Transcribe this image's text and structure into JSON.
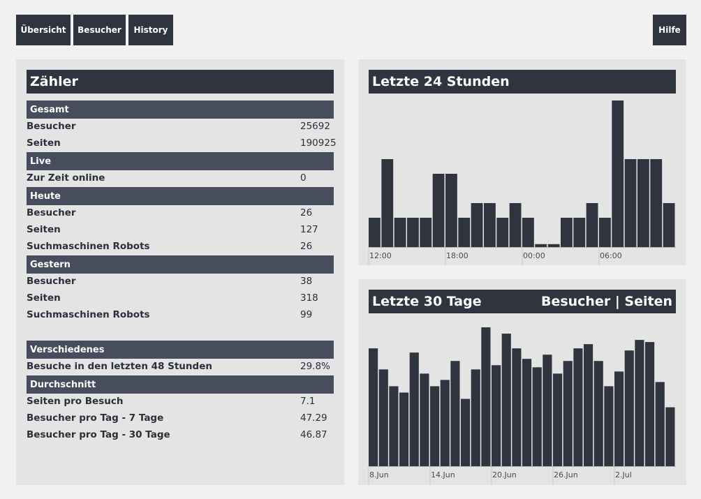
{
  "nav": {
    "overview": "Übersicht",
    "visitors": "Besucher",
    "history": "History",
    "help": "Hilfe"
  },
  "counter": {
    "title": "Zähler",
    "sections": {
      "total": {
        "header": "Gesamt",
        "rows": [
          {
            "label": "Besucher",
            "value": "25692"
          },
          {
            "label": "Seiten",
            "value": "190925"
          }
        ]
      },
      "live": {
        "header": "Live",
        "rows": [
          {
            "label": "Zur Zeit online",
            "value": "0"
          }
        ]
      },
      "today": {
        "header": "Heute",
        "rows": [
          {
            "label": "Besucher",
            "value": "26"
          },
          {
            "label": "Seiten",
            "value": "127"
          },
          {
            "label": "Suchmaschinen Robots",
            "value": "26"
          }
        ]
      },
      "yesterday": {
        "header": "Gestern",
        "rows": [
          {
            "label": "Besucher",
            "value": "38"
          },
          {
            "label": "Seiten",
            "value": "318"
          },
          {
            "label": "Suchmaschinen Robots",
            "value": "99"
          }
        ]
      },
      "misc": {
        "header": "Verschiedenes",
        "rows": [
          {
            "label": "Besuche in den letzten 48 Stunden",
            "value": "29.8%"
          }
        ]
      },
      "average": {
        "header": "Durchschnitt",
        "rows": [
          {
            "label": "Seiten pro Besuch",
            "value": "7.1"
          },
          {
            "label": "Besucher pro Tag - 7 Tage",
            "value": "47.29"
          },
          {
            "label": "Besucher pro Tag - 30 Tage",
            "value": "46.87"
          }
        ]
      }
    }
  },
  "last24": {
    "title": "Letzte 24 Stunden"
  },
  "last30": {
    "title": "Letzte 30 Tage",
    "link_visitors": "Besucher",
    "separator": "|",
    "link_pages": "Seiten"
  },
  "colors": {
    "bar": "#2f343f",
    "header_dark": "#2f343f",
    "header_mid": "#474d5c",
    "panel_bg": "#e4e4e4",
    "page_bg": "#f1f1f1"
  },
  "chart_data": [
    {
      "type": "bar",
      "title": "Letzte 24 Stunden",
      "values": [
        2,
        6,
        2,
        2,
        2,
        5,
        5,
        2,
        3,
        3,
        2,
        3,
        2,
        0.2,
        0.2,
        2,
        2,
        3,
        2,
        10,
        6,
        6,
        6,
        3
      ],
      "ylim": [
        0,
        10
      ],
      "tick_labels": [
        {
          "index": 0,
          "label": "12:00"
        },
        {
          "index": 6,
          "label": "18:00"
        },
        {
          "index": 12,
          "label": "00:00"
        },
        {
          "index": 18,
          "label": "06:00"
        }
      ]
    },
    {
      "type": "bar",
      "title": "Letzte 30 Tage",
      "values": [
        56,
        46,
        38,
        35,
        54,
        44,
        38,
        41,
        50,
        32,
        46,
        66,
        48,
        63,
        56,
        51,
        47,
        53,
        44,
        50,
        56,
        58,
        50,
        38,
        45,
        55,
        60,
        59,
        40,
        28
      ],
      "ylim": [
        0,
        66
      ],
      "tick_labels": [
        {
          "index": 0,
          "label": "8.Jun"
        },
        {
          "index": 6,
          "label": "14.Jun"
        },
        {
          "index": 12,
          "label": "20.Jun"
        },
        {
          "index": 18,
          "label": "26.Jun"
        },
        {
          "index": 24,
          "label": "2.Jul"
        }
      ]
    }
  ]
}
